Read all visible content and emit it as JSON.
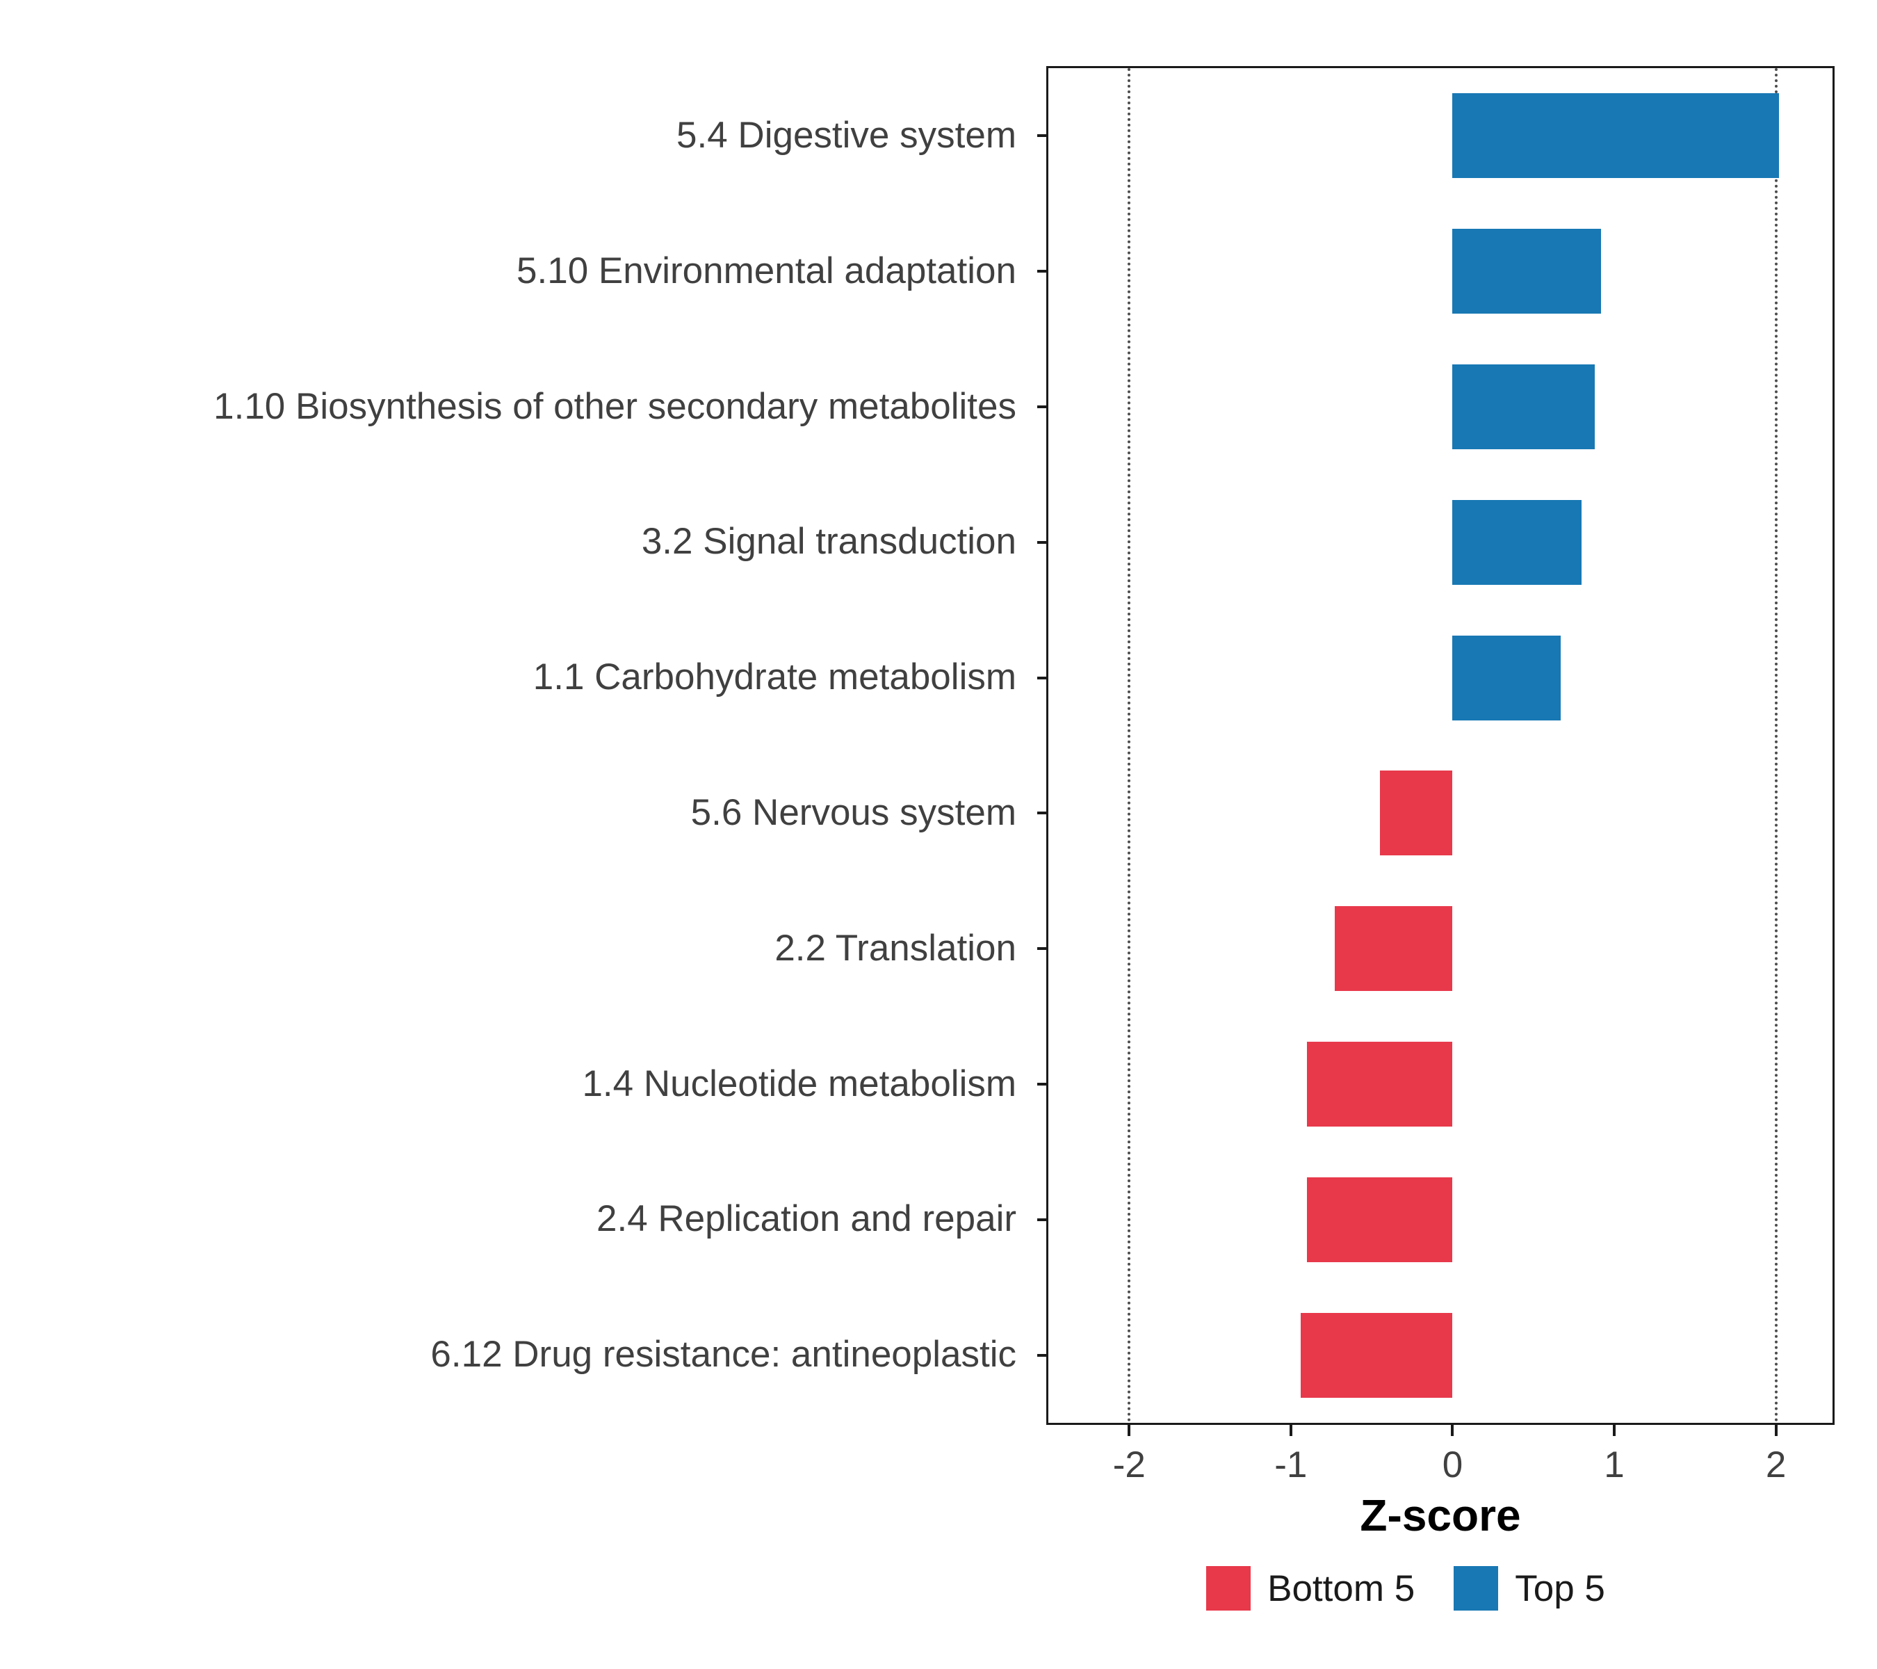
{
  "chart_data": {
    "type": "bar",
    "orientation": "horizontal",
    "title": "",
    "xlabel": "Z-score",
    "ylabel": "",
    "xlim": [
      -2.5,
      2.35
    ],
    "x_ticks": [
      -2,
      -1,
      0,
      1,
      2
    ],
    "x_tick_labels": [
      "-2",
      "-1",
      "0",
      "1",
      "2"
    ],
    "reference_lines": [
      -2,
      2
    ],
    "grid": false,
    "legend_position": "bottom",
    "categories": [
      "5.4 Digestive system",
      "5.10 Environmental adaptation",
      "1.10 Biosynthesis of other secondary metabolites",
      "3.2 Signal transduction",
      "1.1 Carbohydrate metabolism",
      "5.6 Nervous system",
      "2.2 Translation",
      "1.4 Nucleotide metabolism",
      "2.4 Replication and repair",
      "6.12 Drug resistance: antineoplastic"
    ],
    "values": [
      2.02,
      0.92,
      0.88,
      0.8,
      0.67,
      -0.45,
      -0.73,
      -0.9,
      -0.9,
      -0.94
    ],
    "groups": [
      "Top 5",
      "Top 5",
      "Top 5",
      "Top 5",
      "Top 5",
      "Bottom 5",
      "Bottom 5",
      "Bottom 5",
      "Bottom 5",
      "Bottom 5"
    ],
    "colors": {
      "Top 5": "#1878B4",
      "Bottom 5": "#E8394B"
    },
    "legend": [
      {
        "label": "Bottom 5",
        "color": "#E8394B"
      },
      {
        "label": "Top 5",
        "color": "#1878B4"
      }
    ]
  }
}
